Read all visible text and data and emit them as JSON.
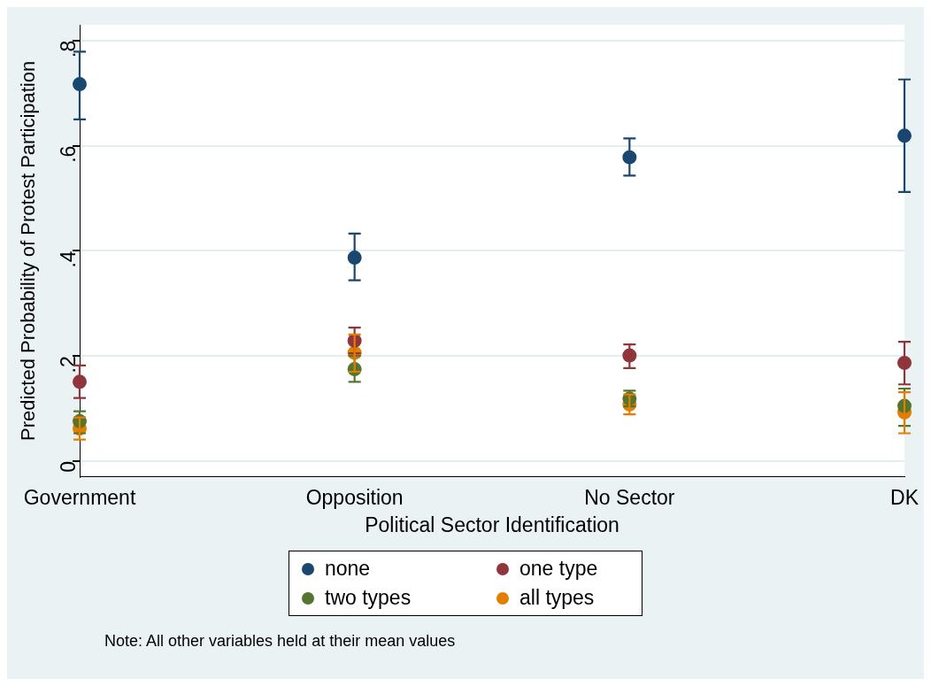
{
  "chart_data": {
    "type": "scatter",
    "xlabel": "Political Sector Identification",
    "ylabel": "Predicted Probability of Protest Participation",
    "categories": [
      "Government",
      "Opposition",
      "No Sector",
      "DK"
    ],
    "series": [
      {
        "name": "none",
        "color": "#1a476f",
        "values": [
          0.717,
          0.387,
          0.578,
          0.619
        ],
        "errors": [
          [
            0.65,
            0.779
          ],
          [
            0.344,
            0.433
          ],
          [
            0.543,
            0.614
          ],
          [
            0.512,
            0.726
          ]
        ]
      },
      {
        "name": "one type",
        "color": "#90353b",
        "values": [
          0.151,
          0.229,
          0.201,
          0.187
        ],
        "errors": [
          [
            0.12,
            0.182
          ],
          [
            0.205,
            0.254
          ],
          [
            0.177,
            0.222
          ],
          [
            0.146,
            0.227
          ]
        ]
      },
      {
        "name": "two types",
        "color": "#55752f",
        "values": [
          0.076,
          0.175,
          0.119,
          0.105
        ],
        "errors": [
          [
            0.053,
            0.095
          ],
          [
            0.151,
            0.2
          ],
          [
            0.104,
            0.134
          ],
          [
            0.067,
            0.138
          ]
        ]
      },
      {
        "name": "all types",
        "color": "#e37e00",
        "values": [
          0.062,
          0.206,
          0.108,
          0.093
        ],
        "errors": [
          [
            0.041,
            0.083
          ],
          [
            0.17,
            0.241
          ],
          [
            0.089,
            0.127
          ],
          [
            0.053,
            0.131
          ]
        ]
      }
    ],
    "ylim": [
      -0.03,
      0.83
    ],
    "yticks": [
      0,
      {
        "value": 0.2,
        "label": ".2"
      },
      {
        "value": 0.4,
        "label": ".4"
      },
      {
        "value": 0.6,
        "label": ".6"
      },
      {
        "value": 0.8,
        "label": ".8"
      }
    ],
    "grid": "y",
    "legend": "bottom",
    "marker": "circle",
    "annotations": [
      "Note: All other variables held at their mean values"
    ]
  }
}
